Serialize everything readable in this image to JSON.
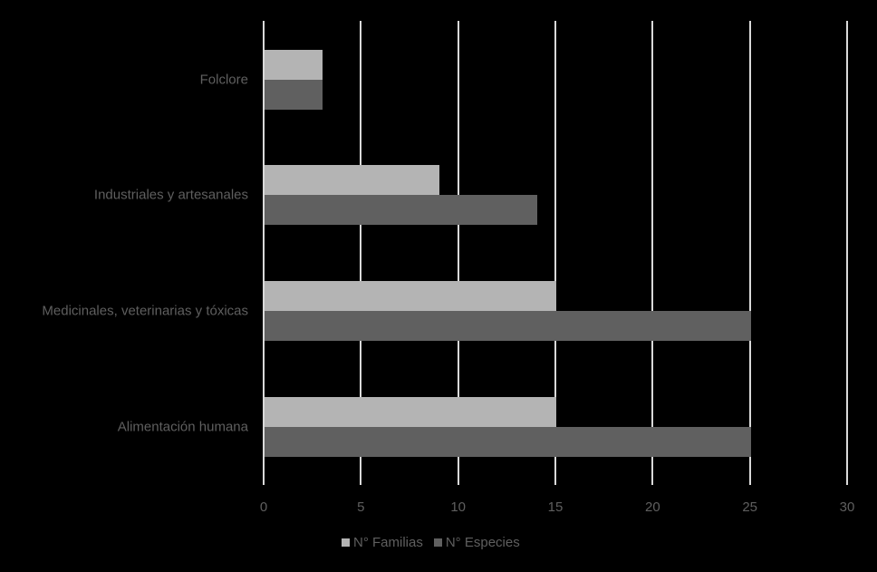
{
  "chart_data": {
    "type": "bar",
    "orientation": "horizontal",
    "title": "",
    "xlabel": "",
    "ylabel": "",
    "categories": [
      "Folclore",
      "Industriales y artesanales",
      "Medicinales, veterinarias y tóxicas",
      "Alimentación humana"
    ],
    "series": [
      {
        "name": "N° Familias",
        "color": "#b4b4b4",
        "values": [
          3,
          9,
          15,
          15
        ]
      },
      {
        "name": "N° Especies",
        "color": "#606060",
        "values": [
          3,
          14,
          25,
          25
        ]
      }
    ],
    "xlim": [
      0,
      30
    ],
    "xticks": [
      "0",
      "5",
      "10",
      "15",
      "20",
      "25",
      "30"
    ],
    "grid": "vertical",
    "legend_position": "bottom",
    "background": "#000000"
  },
  "legend": {
    "items": [
      {
        "label": "N° Familias",
        "color": "#b4b4b4"
      },
      {
        "label": "N° Especies",
        "color": "#606060"
      }
    ]
  }
}
